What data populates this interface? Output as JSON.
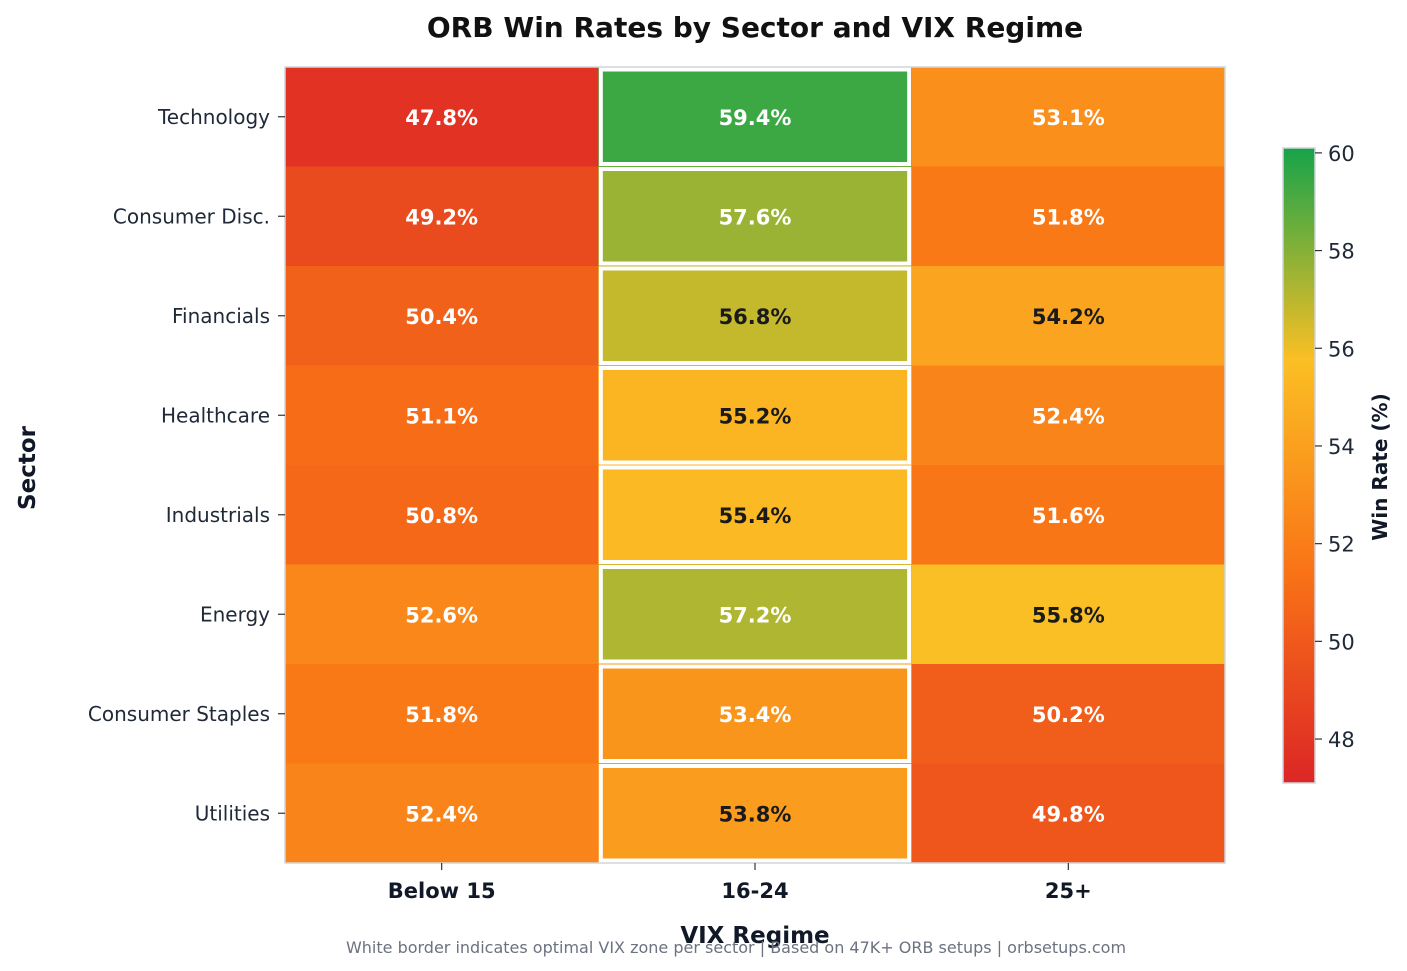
{
  "chart_data": {
    "type": "heatmap",
    "title": "ORB Win Rates by Sector and VIX Regime",
    "xlabel": "VIX Regime",
    "ylabel": "Sector",
    "x_categories": [
      "Below 15",
      "16-24",
      "25+"
    ],
    "y_categories": [
      "Technology",
      "Consumer Disc.",
      "Financials",
      "Healthcare",
      "Industrials",
      "Energy",
      "Consumer Staples",
      "Utilities"
    ],
    "values": [
      [
        47.8,
        59.4,
        53.1
      ],
      [
        49.2,
        57.6,
        51.8
      ],
      [
        50.4,
        56.8,
        54.2
      ],
      [
        51.1,
        55.2,
        52.4
      ],
      [
        50.8,
        55.4,
        51.6
      ],
      [
        52.6,
        57.2,
        55.8
      ],
      [
        51.8,
        53.4,
        50.2
      ],
      [
        52.4,
        53.8,
        49.8
      ]
    ],
    "value_suffix": "%",
    "highlighted_column": "16-24",
    "colorbar": {
      "label": "Win Rate (%)",
      "range": [
        47.1,
        60.1
      ],
      "ticks": [
        48,
        50,
        52,
        54,
        56,
        58,
        60
      ],
      "colors": [
        "#dc2626",
        "#f97316",
        "#fbbf24",
        "#16a34a"
      ]
    },
    "footnote": "White border indicates optimal VIX zone per sector | Based on 47K+ ORB setups | orbsetups.com"
  }
}
